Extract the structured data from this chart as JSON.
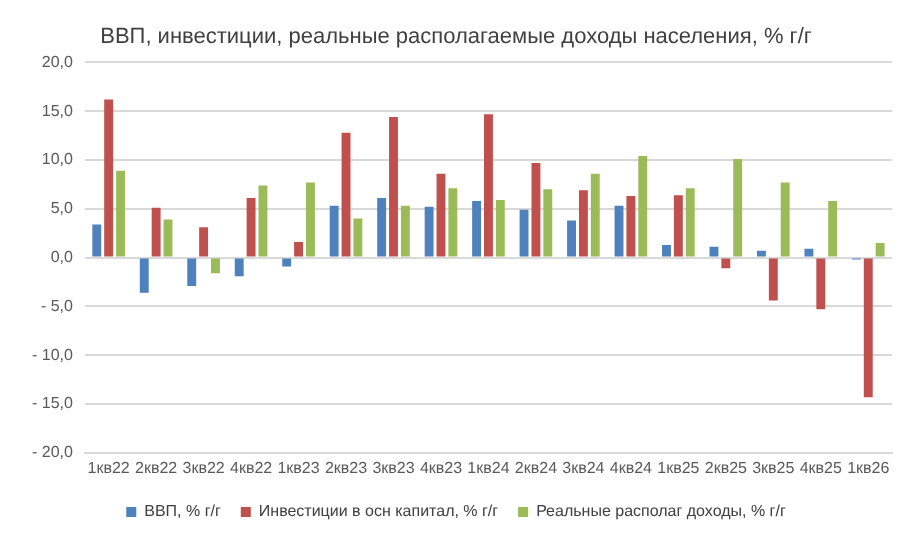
{
  "chart_data": {
    "type": "bar",
    "title": "ВВП, инвестиции, реальные располагаемые доходы населения, % г/г",
    "categories": [
      "1кв22",
      "2кв22",
      "3кв22",
      "4кв22",
      "1кв23",
      "2кв23",
      "3кв23",
      "4кв23",
      "1кв24",
      "2кв24",
      "3кв24",
      "4кв24",
      "1кв25",
      "2кв25",
      "3кв25",
      "4кв25",
      "1кв26"
    ],
    "series": [
      {
        "name": "ВВП, % г/г",
        "color": "#4f81bd",
        "values": [
          3.4,
          -3.6,
          -2.9,
          -1.9,
          -0.9,
          5.3,
          6.1,
          5.2,
          5.8,
          4.9,
          3.8,
          5.3,
          1.3,
          1.1,
          0.7,
          0.9,
          -0.2
        ]
      },
      {
        "name": "Инвестиции в осн капитал, % г/г",
        "color": "#c0504d",
        "values": [
          16.2,
          5.1,
          3.1,
          6.1,
          1.6,
          12.8,
          14.4,
          8.6,
          14.7,
          9.7,
          6.9,
          6.3,
          6.4,
          -1.1,
          -4.4,
          -5.3,
          -14.3
        ]
      },
      {
        "name": "Реальные располаг доходы, % г/г",
        "color": "#9bbb59",
        "values": [
          8.9,
          3.9,
          -1.6,
          7.4,
          7.7,
          4.0,
          5.3,
          7.1,
          5.9,
          7.0,
          8.6,
          10.4,
          7.1,
          10.1,
          7.7,
          5.8,
          1.5
        ]
      }
    ],
    "ylim": [
      -20,
      20
    ],
    "yticks": [
      {
        "value": -20,
        "label": "- 20,0"
      },
      {
        "value": -15,
        "label": "- 15,0"
      },
      {
        "value": -10,
        "label": "- 10,0"
      },
      {
        "value": -5,
        "label": "- 5,0"
      },
      {
        "value": 0,
        "label": "0,0"
      },
      {
        "value": 5,
        "label": "5,0"
      },
      {
        "value": 10,
        "label": "10,0"
      },
      {
        "value": 15,
        "label": "15,0"
      },
      {
        "value": 20,
        "label": "20,0"
      }
    ],
    "grid": "y",
    "legend": "bottom"
  }
}
